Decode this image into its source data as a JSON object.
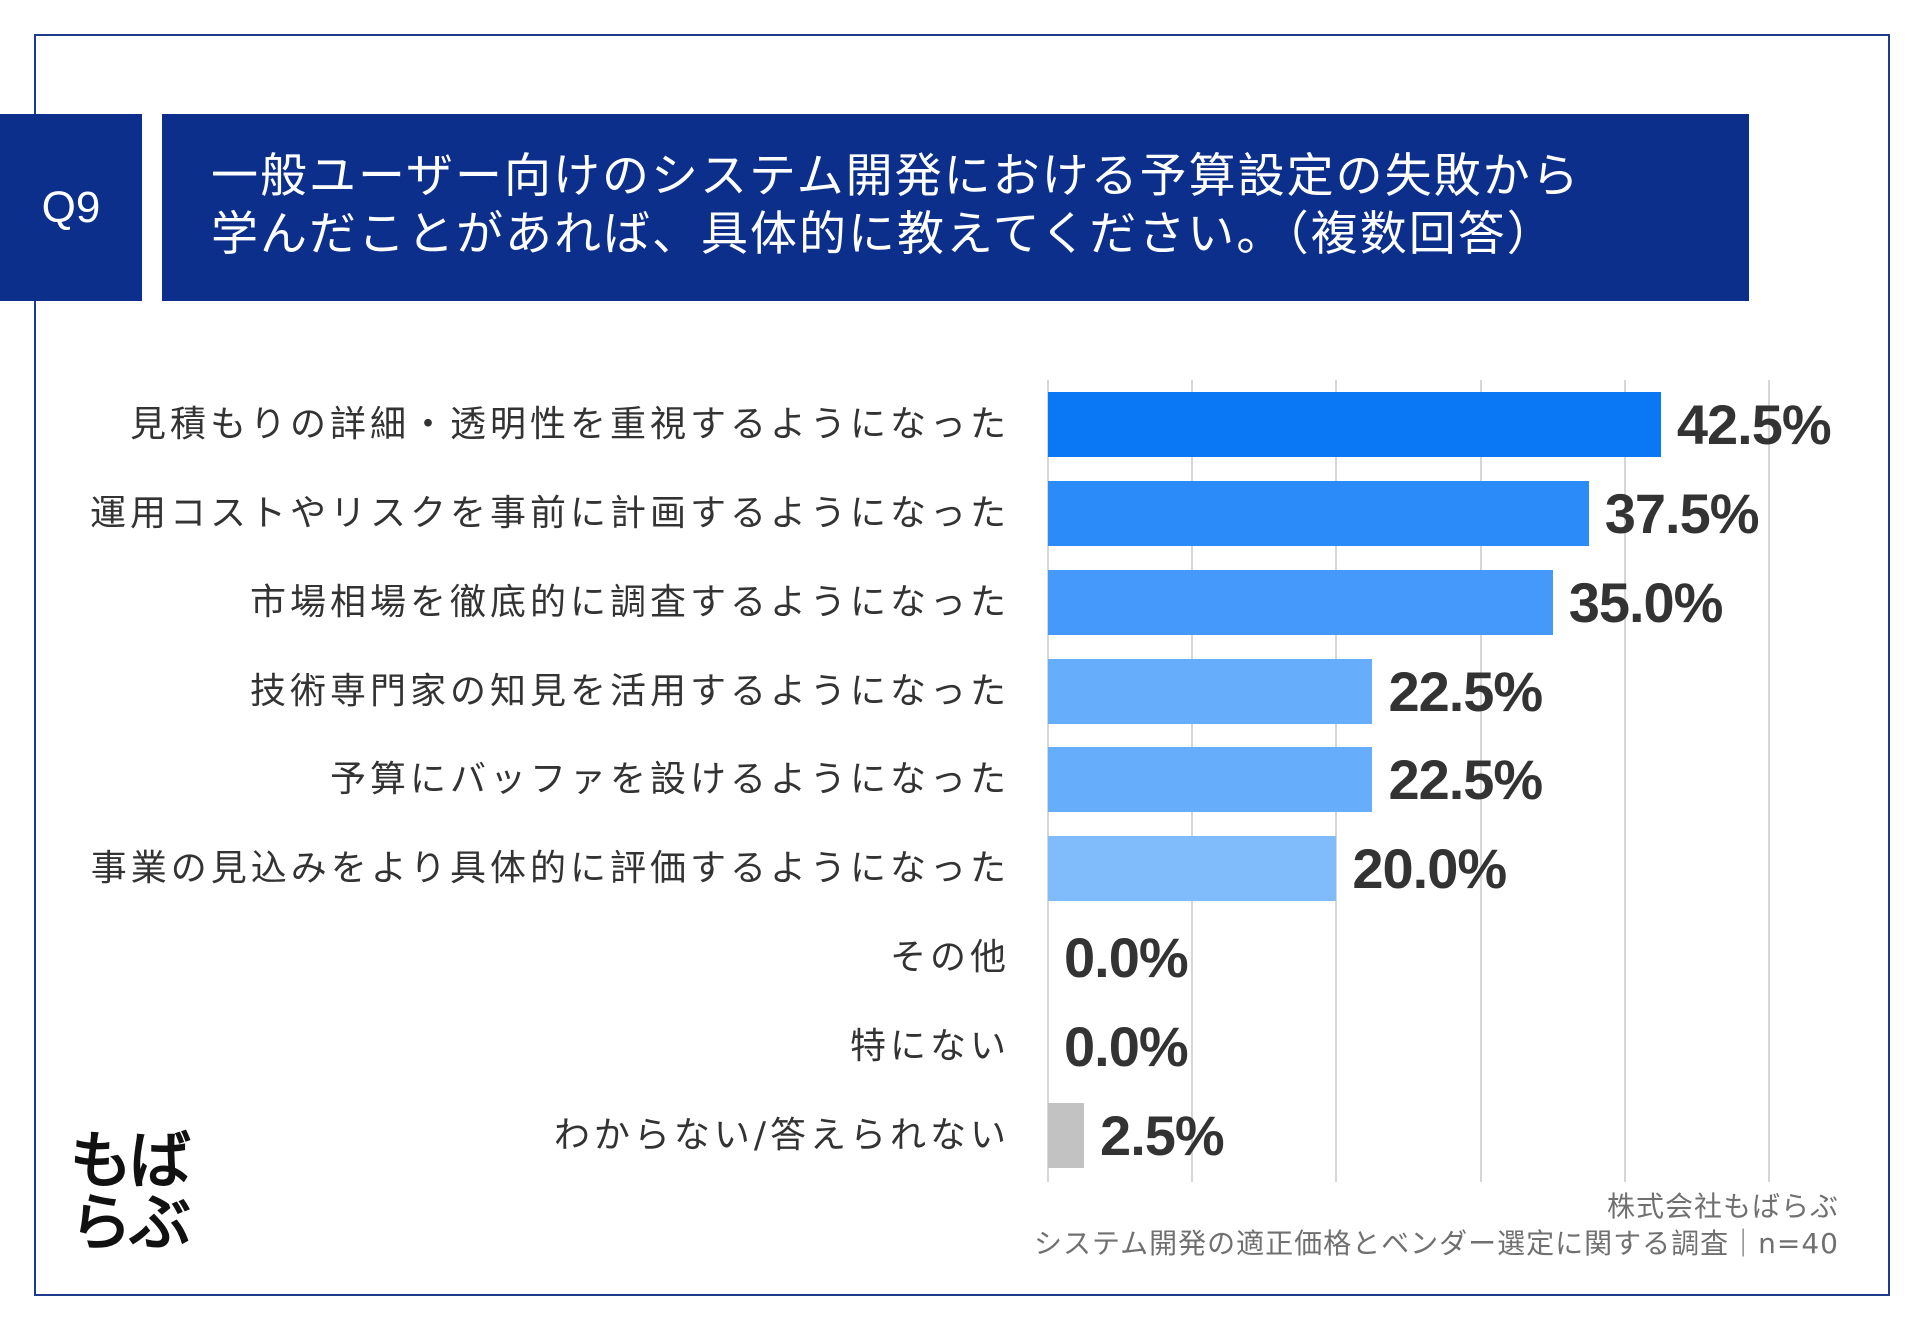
{
  "question": {
    "number": "Q9",
    "title_lines": [
      "一般ユーザー向けのシステム開発における予算設定の失敗から",
      "学んだことがあれば、具体的に教えてください。（複数回答）"
    ]
  },
  "chart_data": {
    "type": "bar",
    "orientation": "horizontal",
    "categories": [
      "見積もりの詳細・透明性を重視するようになった",
      "運用コストやリスクを事前に計画するようになった",
      "市場相場を徹底的に調査するようになった",
      "技術専門家の知見を活用するようになった",
      "予算にバッファを設けるようになった",
      "事業の見込みをより具体的に評価するようになった",
      "その他",
      "特にない",
      "わからない/答えられない"
    ],
    "values": [
      42.5,
      37.5,
      35.0,
      22.5,
      22.5,
      20.0,
      0.0,
      0.0,
      2.5
    ],
    "data_labels": [
      "42.5%",
      "37.5%",
      "35.0%",
      "22.5%",
      "22.5%",
      "20.0%",
      "0.0%",
      "0.0%",
      "2.5%"
    ],
    "unit": "%",
    "xlim": [
      0,
      50
    ],
    "grid": true,
    "grid_step": 10,
    "legend": "none",
    "bar_colors": [
      "#0a77f5",
      "#2b8bf9",
      "#4599fa",
      "#66adfb",
      "#66adfb",
      "#80bcfb",
      null,
      null,
      "#c2c2c2"
    ]
  },
  "logo": {
    "lines": [
      "もば",
      "らぶ"
    ]
  },
  "footer": {
    "company": "株式会社もばらぶ",
    "survey": "システム開発の適正価格とベンダー選定に関する調査｜n=40"
  },
  "theme": {
    "navy": "#0c2f8c",
    "frame": "#1d3b8d",
    "text_dark": "#333333",
    "footer_gray": "#707070",
    "gridline": "#d6d6d6",
    "title_text": "#ffffff"
  }
}
